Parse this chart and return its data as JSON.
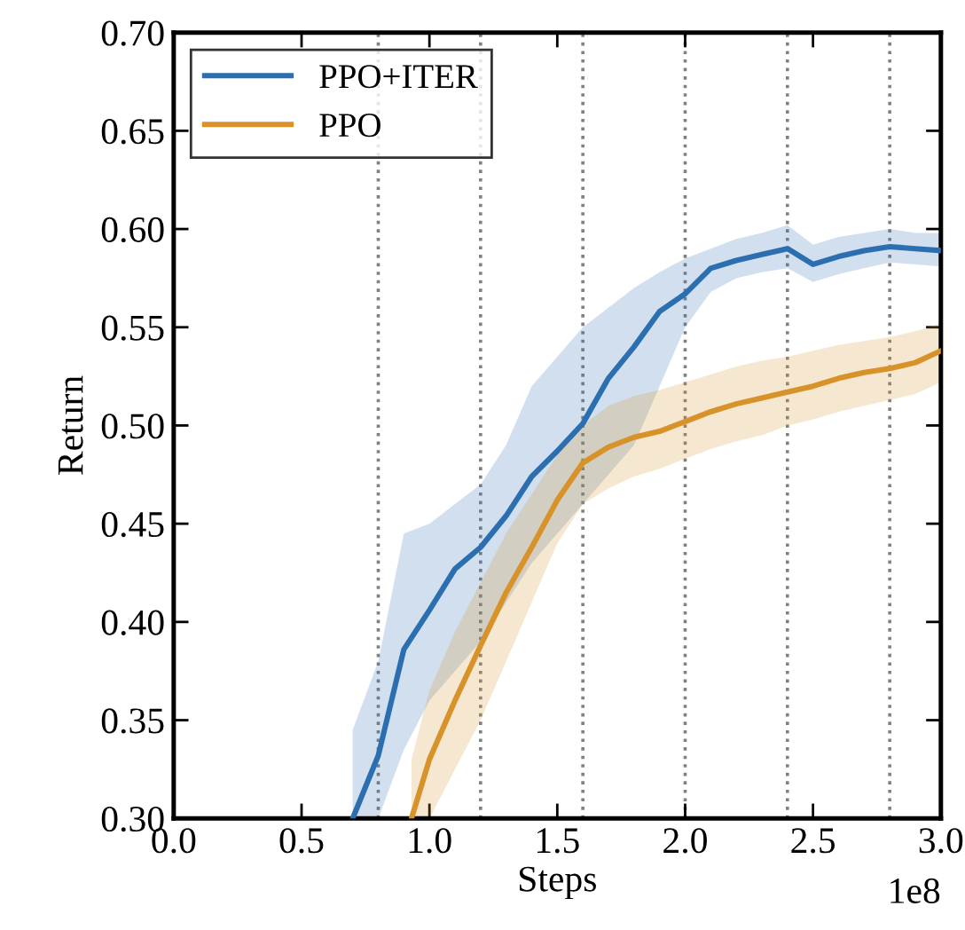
{
  "chart_data": {
    "type": "line",
    "xlabel": "Steps",
    "ylabel": "Return",
    "annotations": [
      "1e8"
    ],
    "xlim": [
      0.0,
      3.0
    ],
    "xticks": [
      {
        "value": 0.0,
        "label": "0.0"
      },
      {
        "value": 0.5,
        "label": "0.5"
      },
      {
        "value": 1.0,
        "label": "1.0"
      },
      {
        "value": 1.5,
        "label": "1.5"
      },
      {
        "value": 2.0,
        "label": "2.0"
      },
      {
        "value": 2.5,
        "label": "2.5"
      },
      {
        "value": 3.0,
        "label": "3.0"
      }
    ],
    "ylim": [
      0.3,
      0.7
    ],
    "yticks": [
      {
        "value": 0.3,
        "label": "0.30"
      },
      {
        "value": 0.35,
        "label": "0.35"
      },
      {
        "value": 0.4,
        "label": "0.40"
      },
      {
        "value": 0.45,
        "label": "0.45"
      },
      {
        "value": 0.5,
        "label": "0.50"
      },
      {
        "value": 0.55,
        "label": "0.55"
      },
      {
        "value": 0.6,
        "label": "0.60"
      },
      {
        "value": 0.65,
        "label": "0.65"
      },
      {
        "value": 0.7,
        "label": "0.70"
      }
    ],
    "grid": false,
    "legend": "top left",
    "marker": "none",
    "line_style": "solid",
    "ref_lines": [
      {
        "axis": "x",
        "value": 0.8,
        "color": "#808080",
        "line_style": "dotted"
      },
      {
        "axis": "x",
        "value": 1.2,
        "color": "#808080",
        "line_style": "dotted"
      },
      {
        "axis": "x",
        "value": 1.6,
        "color": "#808080",
        "line_style": "dotted"
      },
      {
        "axis": "x",
        "value": 2.0,
        "color": "#808080",
        "line_style": "dotted"
      },
      {
        "axis": "x",
        "value": 2.4,
        "color": "#808080",
        "line_style": "dotted"
      },
      {
        "axis": "x",
        "value": 2.8,
        "color": "#808080",
        "line_style": "dotted"
      }
    ],
    "series": [
      {
        "name": "PPO+ITER",
        "color": "#2c6fb0",
        "x": [
          0.7,
          0.8,
          0.9,
          1.0,
          1.1,
          1.2,
          1.3,
          1.4,
          1.5,
          1.6,
          1.7,
          1.8,
          1.9,
          2.0,
          2.1,
          2.2,
          2.3,
          2.4,
          2.5,
          2.6,
          2.7,
          2.8,
          2.9,
          3.0
        ],
        "values": [
          0.3,
          0.332,
          0.386,
          0.406,
          0.427,
          0.438,
          0.454,
          0.474,
          0.487,
          0.501,
          0.524,
          0.54,
          0.558,
          0.567,
          0.58,
          0.584,
          0.587,
          0.59,
          0.582,
          0.586,
          0.589,
          0.591,
          0.59,
          0.589
        ],
        "upper": [
          0.345,
          0.38,
          0.445,
          0.45,
          0.46,
          0.47,
          0.49,
          0.52,
          0.535,
          0.55,
          0.56,
          0.57,
          0.578,
          0.585,
          0.59,
          0.595,
          0.598,
          0.602,
          0.592,
          0.596,
          0.598,
          0.6,
          0.598,
          0.598
        ],
        "lower": [
          0.3,
          0.3,
          0.335,
          0.36,
          0.375,
          0.39,
          0.41,
          0.43,
          0.445,
          0.46,
          0.475,
          0.49,
          0.52,
          0.55,
          0.568,
          0.575,
          0.578,
          0.58,
          0.573,
          0.577,
          0.58,
          0.583,
          0.582,
          0.581
        ]
      },
      {
        "name": "PPO",
        "color": "#d8922a",
        "x": [
          0.93,
          1.0,
          1.1,
          1.2,
          1.3,
          1.4,
          1.5,
          1.6,
          1.7,
          1.8,
          1.9,
          2.0,
          2.1,
          2.2,
          2.3,
          2.4,
          2.5,
          2.6,
          2.7,
          2.8,
          2.9,
          3.0
        ],
        "values": [
          0.3,
          0.33,
          0.36,
          0.388,
          0.415,
          0.438,
          0.462,
          0.481,
          0.489,
          0.494,
          0.497,
          0.502,
          0.507,
          0.511,
          0.514,
          0.517,
          0.52,
          0.524,
          0.527,
          0.529,
          0.532,
          0.538
        ],
        "upper": [
          0.33,
          0.365,
          0.395,
          0.42,
          0.445,
          0.465,
          0.485,
          0.5,
          0.51,
          0.515,
          0.518,
          0.522,
          0.526,
          0.53,
          0.533,
          0.535,
          0.538,
          0.541,
          0.543,
          0.545,
          0.548,
          0.552
        ],
        "lower": [
          0.3,
          0.3,
          0.325,
          0.35,
          0.38,
          0.41,
          0.44,
          0.46,
          0.468,
          0.474,
          0.478,
          0.483,
          0.488,
          0.492,
          0.495,
          0.5,
          0.503,
          0.507,
          0.51,
          0.513,
          0.516,
          0.522
        ]
      }
    ]
  }
}
